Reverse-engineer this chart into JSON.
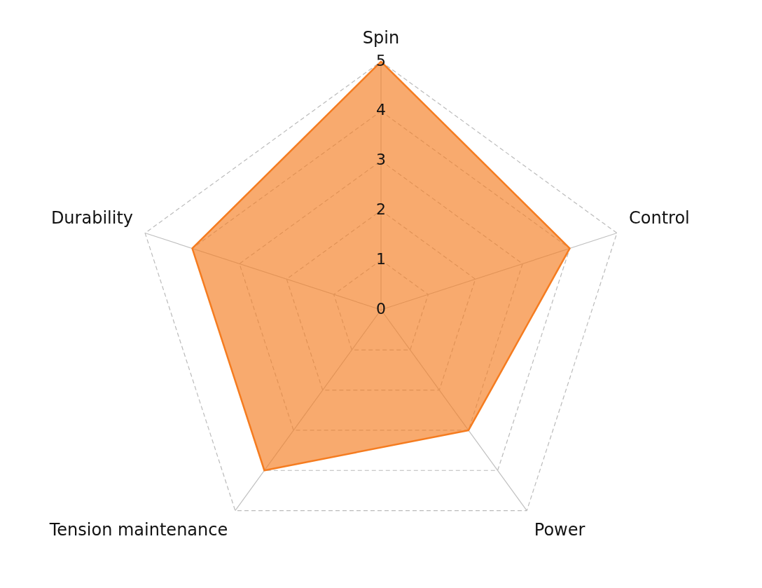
{
  "chart_data": {
    "type": "radar",
    "categories": [
      "Spin",
      "Control",
      "Power",
      "Tension maintenance",
      "Durability"
    ],
    "series": [
      {
        "color": "#f57c20",
        "values": [
          5,
          4,
          3,
          4,
          4
        ]
      }
    ],
    "ylim": [
      0,
      5
    ],
    "yticks": [
      0,
      1,
      2,
      3,
      4,
      5
    ],
    "grid": true,
    "legend": false,
    "marker": "none",
    "line_style": "solid"
  }
}
